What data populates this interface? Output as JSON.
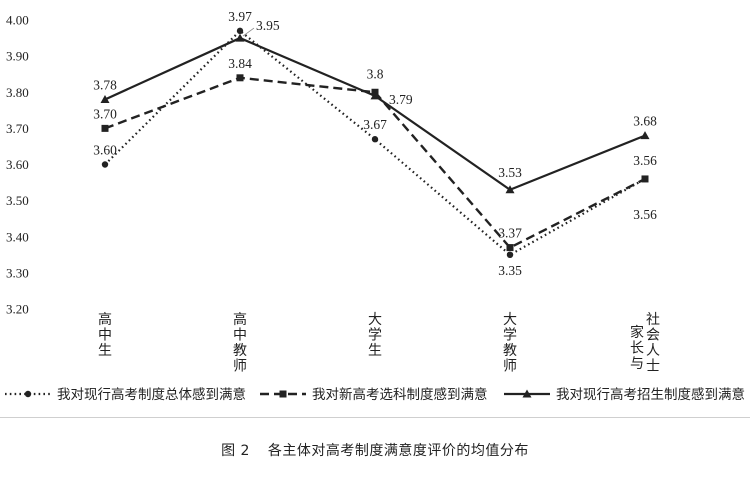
{
  "figure": {
    "number": "图 2",
    "title": "各主体对高考制度满意度评价的均值分布"
  },
  "chart_data": {
    "type": "line",
    "categories": [
      "高中生",
      "高中教师",
      "大学生",
      "大学教师",
      "社会人士家长与"
    ],
    "category_lines": [
      [
        "高中生"
      ],
      [
        "高中教师"
      ],
      [
        "大学生"
      ],
      [
        "大学教师"
      ],
      [
        "社会人士",
        "家长与"
      ]
    ],
    "ylim": [
      3.2,
      4.0
    ],
    "yticks": [
      "3.20",
      "3.30",
      "3.40",
      "3.50",
      "3.60",
      "3.70",
      "3.80",
      "3.90",
      "4.00"
    ],
    "ytick_values": [
      3.2,
      3.3,
      3.4,
      3.5,
      3.6,
      3.7,
      3.8,
      3.9,
      4.0
    ],
    "grid": false,
    "legend_position": "bottom",
    "series": [
      {
        "name": "我对现行高考制度总体感到满意",
        "style": "dotted",
        "marker": "circle",
        "color": "#222222",
        "values": [
          3.6,
          3.97,
          3.67,
          3.35,
          3.56
        ],
        "labels": [
          "3.60",
          "3.97",
          "3.67",
          "3.35",
          "3.56"
        ]
      },
      {
        "name": "我对新高考选科制度感到满意",
        "style": "dashed",
        "marker": "square",
        "color": "#222222",
        "values": [
          3.7,
          3.84,
          3.8,
          3.37,
          3.56
        ],
        "labels": [
          "3.70",
          "3.84",
          "3.8",
          "3.37",
          "3.56"
        ]
      },
      {
        "name": "我对现行高考招生制度感到满意",
        "style": "solid",
        "marker": "triangle",
        "color": "#222222",
        "values": [
          3.78,
          3.95,
          3.79,
          3.53,
          3.68
        ],
        "labels": [
          "3.78",
          "3.95",
          "3.79",
          "3.53",
          "3.68"
        ]
      }
    ]
  }
}
